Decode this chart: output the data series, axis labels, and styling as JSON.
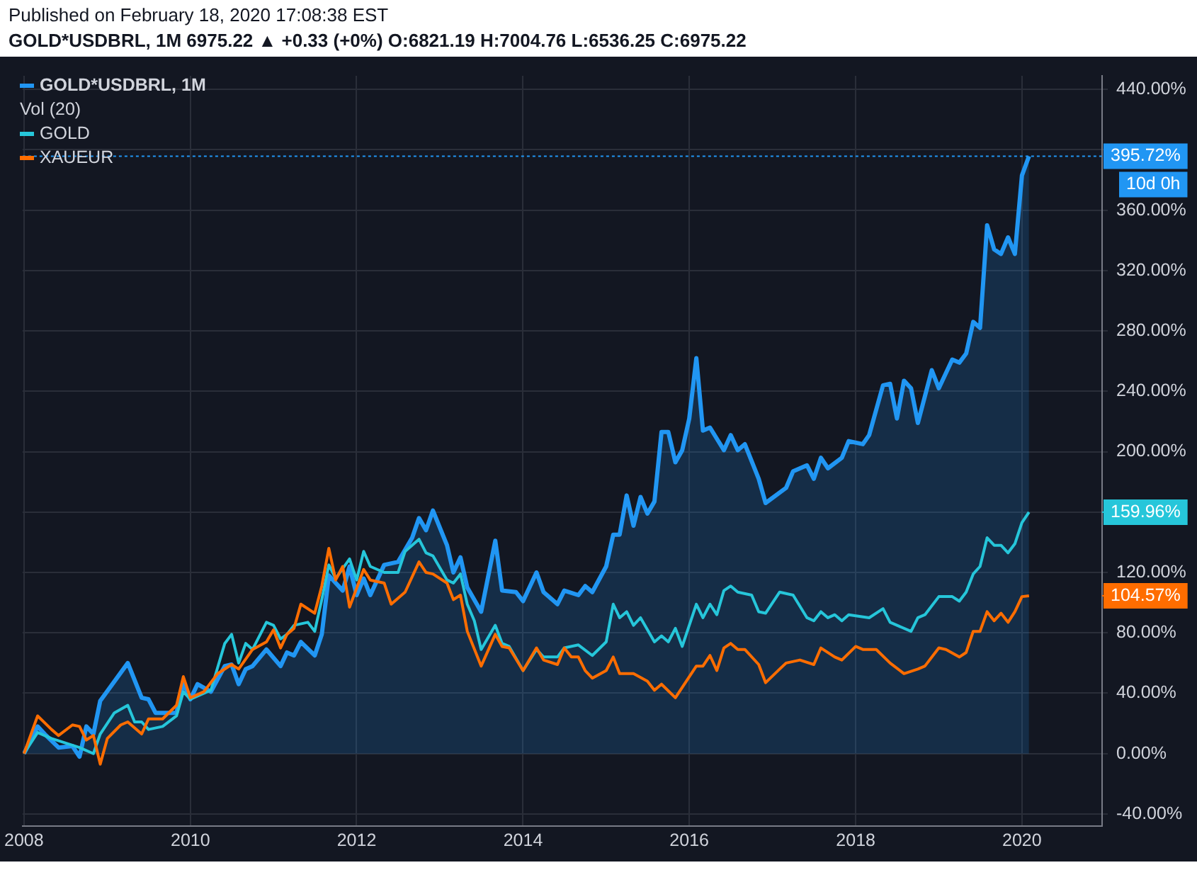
{
  "chart_data": {
    "type": "line",
    "title": "Published on February 18, 2020 17:08:38 EST",
    "subtitle": "GOLD*USDBRL, 1M 6975.22 ▲ +0.33 (+0%) O:6821.19 H:7004.76 L:6536.25 C:6975.22",
    "series": [
      {
        "name": "GOLD*USDBRL, 1M",
        "type": "area",
        "color": "#2196f3",
        "x": [
          "2008-01",
          "2008-03",
          "2008-04",
          "2008-06",
          "2008-08",
          "2008-09",
          "2008-10",
          "2008-11",
          "2008-12",
          "2009-04",
          "2009-06",
          "2009-07",
          "2009-08",
          "2009-11",
          "2009-12",
          "2010-01",
          "2010-02",
          "2010-04",
          "2010-06",
          "2010-07",
          "2010-08",
          "2010-09",
          "2010-10",
          "2010-12",
          "2011-02",
          "2011-03",
          "2011-04",
          "2011-05",
          "2011-07",
          "2011-08",
          "2011-09",
          "2011-11",
          "2011-12",
          "2012-01",
          "2012-02",
          "2012-03",
          "2012-05",
          "2012-07",
          "2012-09",
          "2012-10",
          "2012-11",
          "2012-12",
          "2013-02",
          "2013-03",
          "2013-04",
          "2013-05",
          "2013-07",
          "2013-09",
          "2013-10",
          "2013-12",
          "2014-01",
          "2014-03",
          "2014-04",
          "2014-06",
          "2014-07",
          "2014-09",
          "2014-10",
          "2014-11",
          "2015-01",
          "2015-02",
          "2015-03",
          "2015-04",
          "2015-05",
          "2015-06",
          "2015-07",
          "2015-08",
          "2015-09",
          "2015-10",
          "2015-11",
          "2015-12",
          "2016-01",
          "2016-02",
          "2016-03",
          "2016-04",
          "2016-06",
          "2016-07",
          "2016-08",
          "2016-09",
          "2016-11",
          "2016-12",
          "2017-03",
          "2017-04",
          "2017-06",
          "2017-07",
          "2017-08",
          "2017-09",
          "2017-11",
          "2017-12",
          "2018-02",
          "2018-03",
          "2018-05",
          "2018-06",
          "2018-07",
          "2018-08",
          "2018-09",
          "2018-10",
          "2018-12",
          "2019-01",
          "2019-03",
          "2019-04",
          "2019-05",
          "2019-06",
          "2019-07",
          "2019-08",
          "2019-09",
          "2019-10",
          "2019-11",
          "2019-12",
          "2020-01",
          "2020-02"
        ],
        "values": [
          0,
          18,
          13,
          4,
          5,
          -2,
          18,
          13,
          35,
          60,
          37,
          36,
          27,
          27,
          47,
          36,
          46,
          41,
          58,
          59,
          46,
          56,
          58,
          69,
          58,
          67,
          65,
          74,
          65,
          79,
          118,
          108,
          124,
          105,
          116,
          105,
          125,
          127,
          143,
          156,
          148,
          161,
          138,
          120,
          130,
          110,
          94,
          141,
          108,
          107,
          101,
          120,
          107,
          99,
          108,
          105,
          111,
          107,
          124,
          145,
          145,
          171,
          151,
          170,
          159,
          167,
          213,
          213,
          193,
          201,
          222,
          262,
          214,
          216,
          201,
          211,
          201,
          205,
          182,
          166,
          176,
          187,
          191,
          182,
          196,
          189,
          196,
          207,
          205,
          211,
          244,
          245,
          222,
          247,
          242,
          219,
          254,
          242,
          261,
          259,
          265,
          286,
          282,
          350,
          334,
          331,
          342,
          331,
          383,
          395.72
        ]
      },
      {
        "name": "GOLD",
        "type": "line",
        "color": "#26c6da",
        "x": [
          "2008-01",
          "2008-03",
          "2008-05",
          "2008-09",
          "2008-11",
          "2008-12",
          "2009-02",
          "2009-04",
          "2009-05",
          "2009-06",
          "2009-07",
          "2009-09",
          "2009-11",
          "2009-12",
          "2010-01",
          "2010-04",
          "2010-06",
          "2010-07",
          "2010-08",
          "2010-09",
          "2010-10",
          "2010-12",
          "2011-01",
          "2011-02",
          "2011-03",
          "2011-04",
          "2011-06",
          "2011-07",
          "2011-08",
          "2011-09",
          "2011-10",
          "2011-12",
          "2012-01",
          "2012-02",
          "2012-03",
          "2012-05",
          "2012-07",
          "2012-08",
          "2012-10",
          "2012-11",
          "2012-12",
          "2013-02",
          "2013-03",
          "2013-04",
          "2013-05",
          "2013-06",
          "2013-07",
          "2013-09",
          "2013-10",
          "2013-11",
          "2014-01",
          "2014-03",
          "2014-04",
          "2014-06",
          "2014-07",
          "2014-09",
          "2014-11",
          "2015-01",
          "2015-02",
          "2015-03",
          "2015-04",
          "2015-05",
          "2015-06",
          "2015-08",
          "2015-09",
          "2015-10",
          "2015-11",
          "2015-12",
          "2016-02",
          "2016-03",
          "2016-04",
          "2016-05",
          "2016-06",
          "2016-07",
          "2016-08",
          "2016-10",
          "2016-11",
          "2016-12",
          "2017-02",
          "2017-04",
          "2017-06",
          "2017-07",
          "2017-08",
          "2017-09",
          "2017-10",
          "2017-11",
          "2017-12",
          "2018-03",
          "2018-05",
          "2018-06",
          "2018-09",
          "2018-10",
          "2018-11",
          "2019-01",
          "2019-03",
          "2019-04",
          "2019-05",
          "2019-06",
          "2019-07",
          "2019-08",
          "2019-09",
          "2019-10",
          "2019-11",
          "2019-12",
          "2020-01",
          "2020-02"
        ],
        "values": [
          0,
          14,
          10,
          4,
          0,
          13,
          27,
          32,
          21,
          21,
          16,
          18,
          25,
          41,
          36,
          42,
          73,
          79,
          60,
          73,
          69,
          87,
          85,
          76,
          79,
          85,
          87,
          81,
          102,
          125,
          116,
          129,
          115,
          134,
          124,
          120,
          120,
          134,
          142,
          133,
          131,
          115,
          113,
          119,
          99,
          88,
          69,
          85,
          73,
          71,
          55,
          69,
          64,
          64,
          70,
          72,
          65,
          74,
          99,
          90,
          94,
          85,
          90,
          74,
          78,
          74,
          83,
          71,
          99,
          90,
          99,
          92,
          108,
          111,
          107,
          105,
          94,
          93,
          107,
          105,
          90,
          88,
          94,
          90,
          92,
          88,
          92,
          90,
          96,
          87,
          81,
          90,
          92,
          104,
          104,
          101,
          107,
          119,
          124,
          143,
          138,
          138,
          133,
          139,
          153,
          159.96
        ]
      },
      {
        "name": "XAUEUR",
        "type": "line",
        "color": "#ff6d00",
        "x": [
          "2008-01",
          "2008-03",
          "2008-05",
          "2008-06",
          "2008-08",
          "2008-09",
          "2008-10",
          "2008-11",
          "2008-12",
          "2009-01",
          "2009-03",
          "2009-04",
          "2009-06",
          "2009-07",
          "2009-09",
          "2009-11",
          "2009-12",
          "2010-01",
          "2010-03",
          "2010-05",
          "2010-07",
          "2010-08",
          "2010-10",
          "2010-12",
          "2011-01",
          "2011-02",
          "2011-03",
          "2011-04",
          "2011-05",
          "2011-07",
          "2011-08",
          "2011-09",
          "2011-10",
          "2011-11",
          "2011-12",
          "2012-02",
          "2012-03",
          "2012-05",
          "2012-06",
          "2012-08",
          "2012-10",
          "2012-11",
          "2012-12",
          "2013-02",
          "2013-03",
          "2013-04",
          "2013-05",
          "2013-07",
          "2013-09",
          "2013-10",
          "2013-11",
          "2014-01",
          "2014-03",
          "2014-04",
          "2014-06",
          "2014-07",
          "2014-08",
          "2014-09",
          "2014-10",
          "2014-11",
          "2015-01",
          "2015-02",
          "2015-03",
          "2015-04",
          "2015-05",
          "2015-07",
          "2015-08",
          "2015-09",
          "2015-11",
          "2016-02",
          "2016-03",
          "2016-04",
          "2016-05",
          "2016-06",
          "2016-07",
          "2016-08",
          "2016-09",
          "2016-11",
          "2016-12",
          "2017-02",
          "2017-03",
          "2017-05",
          "2017-07",
          "2017-08",
          "2017-10",
          "2017-11",
          "2018-01",
          "2018-02",
          "2018-04",
          "2018-06",
          "2018-08",
          "2018-10",
          "2018-11",
          "2019-01",
          "2019-02",
          "2019-04",
          "2019-05",
          "2019-06",
          "2019-07",
          "2019-08",
          "2019-09",
          "2019-10",
          "2019-11",
          "2019-12",
          "2020-01",
          "2020-02"
        ],
        "values": [
          0,
          25,
          16,
          12,
          19,
          18,
          9,
          12,
          -7,
          10,
          19,
          21,
          13,
          23,
          23,
          32,
          51,
          37,
          41,
          53,
          59,
          56,
          69,
          74,
          82,
          70,
          79,
          83,
          99,
          93,
          111,
          136,
          115,
          124,
          97,
          122,
          115,
          113,
          99,
          107,
          127,
          120,
          119,
          113,
          102,
          105,
          81,
          58,
          79,
          71,
          70,
          55,
          70,
          62,
          59,
          70,
          64,
          64,
          55,
          50,
          55,
          64,
          53,
          53,
          53,
          48,
          42,
          46,
          37,
          58,
          58,
          65,
          55,
          70,
          73,
          69,
          69,
          59,
          47,
          56,
          60,
          62,
          59,
          70,
          64,
          62,
          71,
          69,
          69,
          60,
          53,
          56,
          58,
          70,
          69,
          64,
          67,
          81,
          81,
          94,
          88,
          93,
          87,
          94,
          104,
          104.57
        ]
      }
    ],
    "xlim": [
      "2007-12-26",
      "2020-12-18"
    ],
    "xticks": [
      "2008",
      "2010",
      "2012",
      "2014",
      "2016",
      "2018",
      "2020"
    ],
    "ylim": [
      -48,
      449
    ],
    "yticks": [
      {
        "value": -40,
        "label": "-40.00%"
      },
      {
        "value": 0,
        "label": "0.00%"
      },
      {
        "value": 40,
        "label": "40.00%"
      },
      {
        "value": 80,
        "label": "80.00%"
      },
      {
        "value": 120,
        "label": "120.00%"
      },
      {
        "value": 160,
        "label": null
      },
      {
        "value": 200,
        "label": "200.00%"
      },
      {
        "value": 240,
        "label": "240.00%"
      },
      {
        "value": 280,
        "label": "280.00%"
      },
      {
        "value": 320,
        "label": "320.00%"
      },
      {
        "value": 360,
        "label": "360.00%"
      },
      {
        "value": 400,
        "label": null
      },
      {
        "value": 440,
        "label": "440.00%"
      }
    ],
    "ref_lines": [
      {
        "axis": "y",
        "value": 395.72,
        "label": "395.72%",
        "color": "#2196f3",
        "line_style": "dotted"
      }
    ],
    "annotations": [
      "Vol (20)",
      "10d 0h",
      "159.96%",
      "104.57%"
    ],
    "grid": true,
    "legend": "top left",
    "marker": "none",
    "line_style": "solid"
  }
}
